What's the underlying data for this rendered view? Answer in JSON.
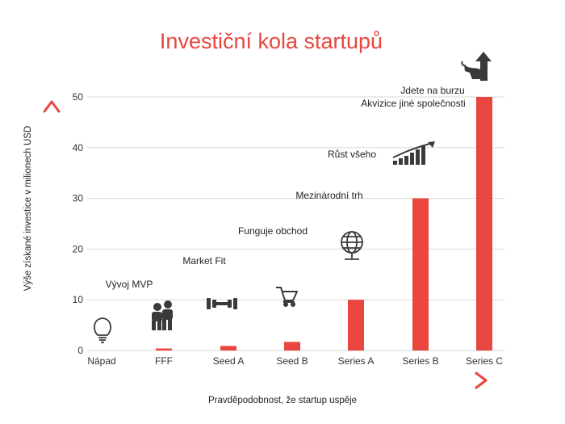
{
  "colors": {
    "accent": "#e8463f",
    "grid": "#d9d9d9",
    "icon": "#3a3a3a"
  },
  "chart_data": {
    "type": "bar",
    "title": "Investiční kola startupů",
    "xlabel": "Pravděpodobnost, že startup uspěje",
    "ylabel": "Výše získané investice v milionech USD",
    "categories": [
      "Nápad",
      "FFF",
      "Seed A",
      "Seed B",
      "Series A",
      "Series B",
      "Series C"
    ],
    "values": [
      0,
      0.4,
      0.9,
      1.7,
      10,
      30,
      50
    ],
    "ylim": [
      0,
      50
    ],
    "yticks": [
      0,
      10,
      20,
      30,
      40,
      50
    ],
    "grid": true,
    "annotations": [
      "Vývoj MVP",
      "Market Fit",
      "Funguje obchod",
      "Mezinárodní trh",
      "Růst všeho",
      "Akvizice jiné společnosti",
      "Jdete na burzu"
    ],
    "icons": [
      "lightbulb-icon",
      "people-icon",
      "dumbbell-icon",
      "shopping-cart-icon",
      "globe-icon",
      "growth-bars-icon",
      "bull-arrow-icon"
    ]
  }
}
